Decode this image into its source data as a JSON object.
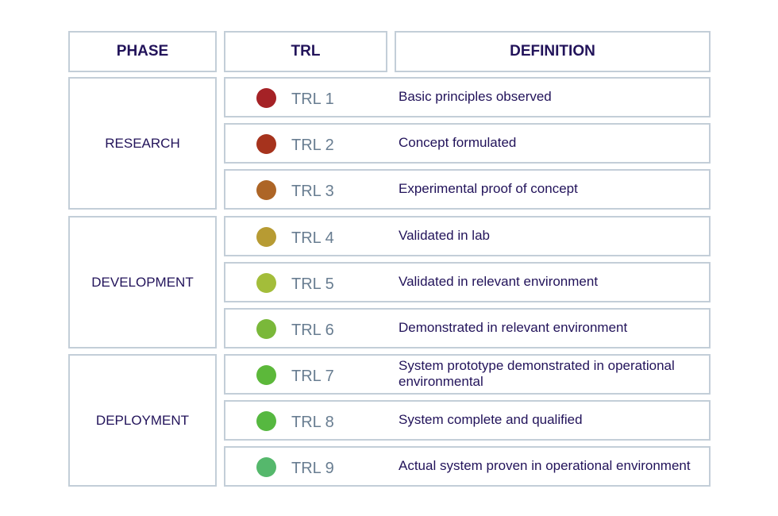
{
  "headers": {
    "phase": "PHASE",
    "trl": "TRL",
    "definition": "DEFINITION"
  },
  "phases": [
    {
      "label": "RESEARCH"
    },
    {
      "label": "DEVELOPMENT"
    },
    {
      "label": "DEPLOYMENT"
    }
  ],
  "rows": [
    {
      "trl": "TRL 1",
      "definition": "Basic principles observed",
      "color": "#a52226"
    },
    {
      "trl": "TRL 2",
      "definition": "Concept formulated",
      "color": "#a6331d"
    },
    {
      "trl": "TRL 3",
      "definition": "Experimental proof of concept",
      "color": "#ad6526"
    },
    {
      "trl": "TRL 4",
      "definition": "Validated in lab",
      "color": "#b79b33"
    },
    {
      "trl": "TRL 5",
      "definition": "Validated in relevant environment",
      "color": "#a3bd3a"
    },
    {
      "trl": "TRL 6",
      "definition": "Demonstrated in relevant environment",
      "color": "#7ab83a"
    },
    {
      "trl": "TRL 7",
      "definition": "System prototype demonstrated in operational environmental",
      "color": "#5cb83a"
    },
    {
      "trl": "TRL 8",
      "definition": "System complete and qualified",
      "color": "#56b840"
    },
    {
      "trl": "TRL 9",
      "definition": "Actual system proven in operational environment",
      "color": "#55b86c"
    }
  ]
}
